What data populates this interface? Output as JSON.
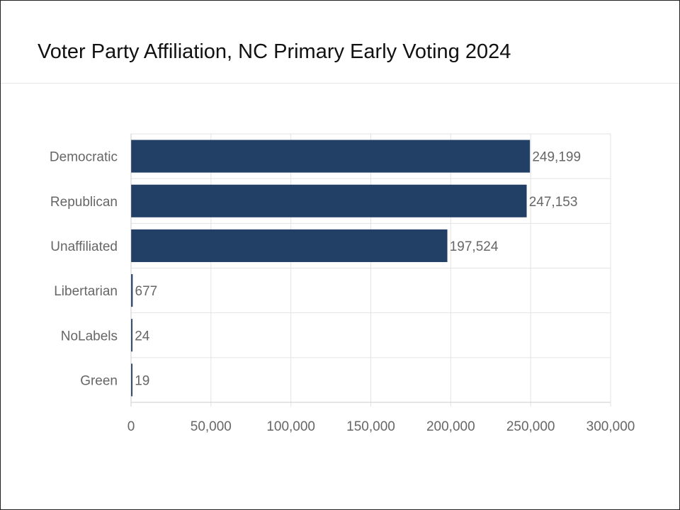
{
  "header": {
    "title": "Voter Party Affiliation, NC Primary Early Voting 2024"
  },
  "colors": {
    "bar": "#223f66",
    "grid": "#e3e3e3",
    "axis": "#cccccc",
    "label": "#666666"
  },
  "chart_data": {
    "type": "bar",
    "orientation": "horizontal",
    "title": "Voter Party Affiliation, NC Primary Early Voting 2024",
    "xlabel": "",
    "ylabel": "",
    "categories": [
      "Democratic",
      "Republican",
      "Unaffiliated",
      "Libertarian",
      "NoLabels",
      "Green"
    ],
    "values": [
      249199,
      247153,
      197524,
      677,
      24,
      19
    ],
    "value_labels": [
      "249,199",
      "247,153",
      "197,524",
      "677",
      "24",
      "19"
    ],
    "xlim": [
      0,
      300000
    ],
    "xticks": [
      0,
      50000,
      100000,
      150000,
      200000,
      250000,
      300000
    ],
    "xtick_labels": [
      "0",
      "50,000",
      "100,000",
      "150,000",
      "200,000",
      "250,000",
      "300,000"
    ],
    "grid": true,
    "legend": "none"
  }
}
